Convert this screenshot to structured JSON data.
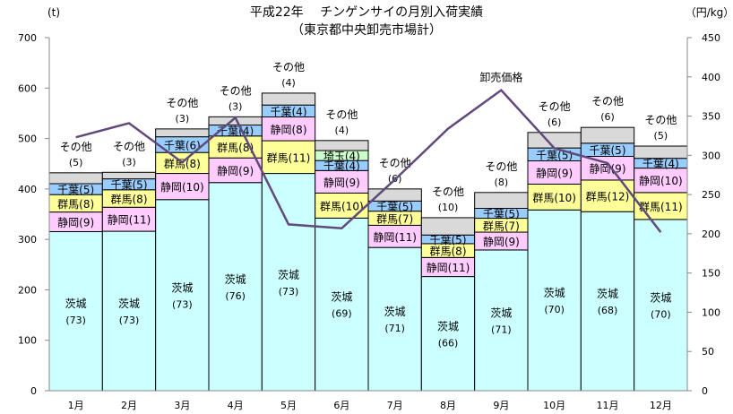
{
  "chart_data": {
    "type": "bar",
    "title": "平成22年　 チンゲンサイの月別入荷実績",
    "subtitle": "（東京都中央卸売市場計）",
    "ylabel": "(t)",
    "y2label": "（円/kg）",
    "ylim": [
      0,
      700
    ],
    "y2lim": [
      0,
      450
    ],
    "yticks": [
      0,
      100,
      200,
      300,
      400,
      500,
      600,
      700
    ],
    "y2ticks": [
      0,
      50,
      100,
      150,
      200,
      250,
      300,
      350,
      400,
      450
    ],
    "categories": [
      "1月",
      "2月",
      "3月",
      "4月",
      "5月",
      "6月",
      "7月",
      "8月",
      "9月",
      "10月",
      "11月",
      "12月"
    ],
    "note": "Bars are stacked quantities (t); numbers in parentheses are shares (%) by origin, listed bottom to top.",
    "colors": {
      "茨城": "#ccffff",
      "静岡": "#ffccff",
      "群馬": "#ffff99",
      "千葉": "#99ccff",
      "埼玉": "#ccffcc",
      "その他": "#d9d9d9",
      "line": "#604a7b"
    },
    "totals": [
      432,
      433,
      519,
      543,
      590,
      496,
      400,
      343,
      393,
      512,
      522,
      485
    ],
    "stacks": [
      [
        [
          "茨城",
          73
        ],
        [
          "静岡",
          9
        ],
        [
          "群馬",
          8
        ],
        [
          "千葉",
          5
        ],
        [
          "その他",
          5
        ]
      ],
      [
        [
          "茨城",
          73
        ],
        [
          "静岡",
          11
        ],
        [
          "群馬",
          8
        ],
        [
          "千葉",
          5
        ],
        [
          "その他",
          3
        ]
      ],
      [
        [
          "茨城",
          73
        ],
        [
          "静岡",
          10
        ],
        [
          "群馬",
          8
        ],
        [
          "千葉",
          6
        ],
        [
          "その他",
          3
        ]
      ],
      [
        [
          "茨城",
          76
        ],
        [
          "静岡",
          9
        ],
        [
          "群馬",
          8
        ],
        [
          "千葉",
          4
        ],
        [
          "その他",
          3
        ]
      ],
      [
        [
          "茨城",
          73
        ],
        [
          "群馬",
          11
        ],
        [
          "静岡",
          8
        ],
        [
          "千葉",
          4
        ],
        [
          "その他",
          4
        ]
      ],
      [
        [
          "茨城",
          69
        ],
        [
          "群馬",
          10
        ],
        [
          "静岡",
          9
        ],
        [
          "千葉",
          4
        ],
        [
          "埼玉",
          4
        ],
        [
          "その他",
          4
        ]
      ],
      [
        [
          "茨城",
          71
        ],
        [
          "静岡",
          11
        ],
        [
          "群馬",
          7
        ],
        [
          "千葉",
          5
        ],
        [
          "その他",
          6
        ]
      ],
      [
        [
          "茨城",
          66
        ],
        [
          "静岡",
          11
        ],
        [
          "群馬",
          8
        ],
        [
          "千葉",
          5
        ],
        [
          "その他",
          10
        ]
      ],
      [
        [
          "茨城",
          71
        ],
        [
          "静岡",
          9
        ],
        [
          "群馬",
          7
        ],
        [
          "千葉",
          5
        ],
        [
          "その他",
          8
        ]
      ],
      [
        [
          "茨城",
          70
        ],
        [
          "群馬",
          10
        ],
        [
          "静岡",
          9
        ],
        [
          "千葉",
          5
        ],
        [
          "その他",
          6
        ]
      ],
      [
        [
          "茨城",
          68
        ],
        [
          "群馬",
          12
        ],
        [
          "静岡",
          9
        ],
        [
          "千葉",
          5
        ],
        [
          "その他",
          6
        ]
      ],
      [
        [
          "茨城",
          70
        ],
        [
          "群馬",
          11
        ],
        [
          "静岡",
          10
        ],
        [
          "千葉",
          4
        ],
        [
          "その他",
          5
        ]
      ]
    ],
    "line_series": {
      "name": "卸売価格",
      "values": [
        323,
        341,
        291,
        348,
        212,
        207,
        269,
        334,
        383,
        309,
        290,
        202
      ]
    }
  }
}
